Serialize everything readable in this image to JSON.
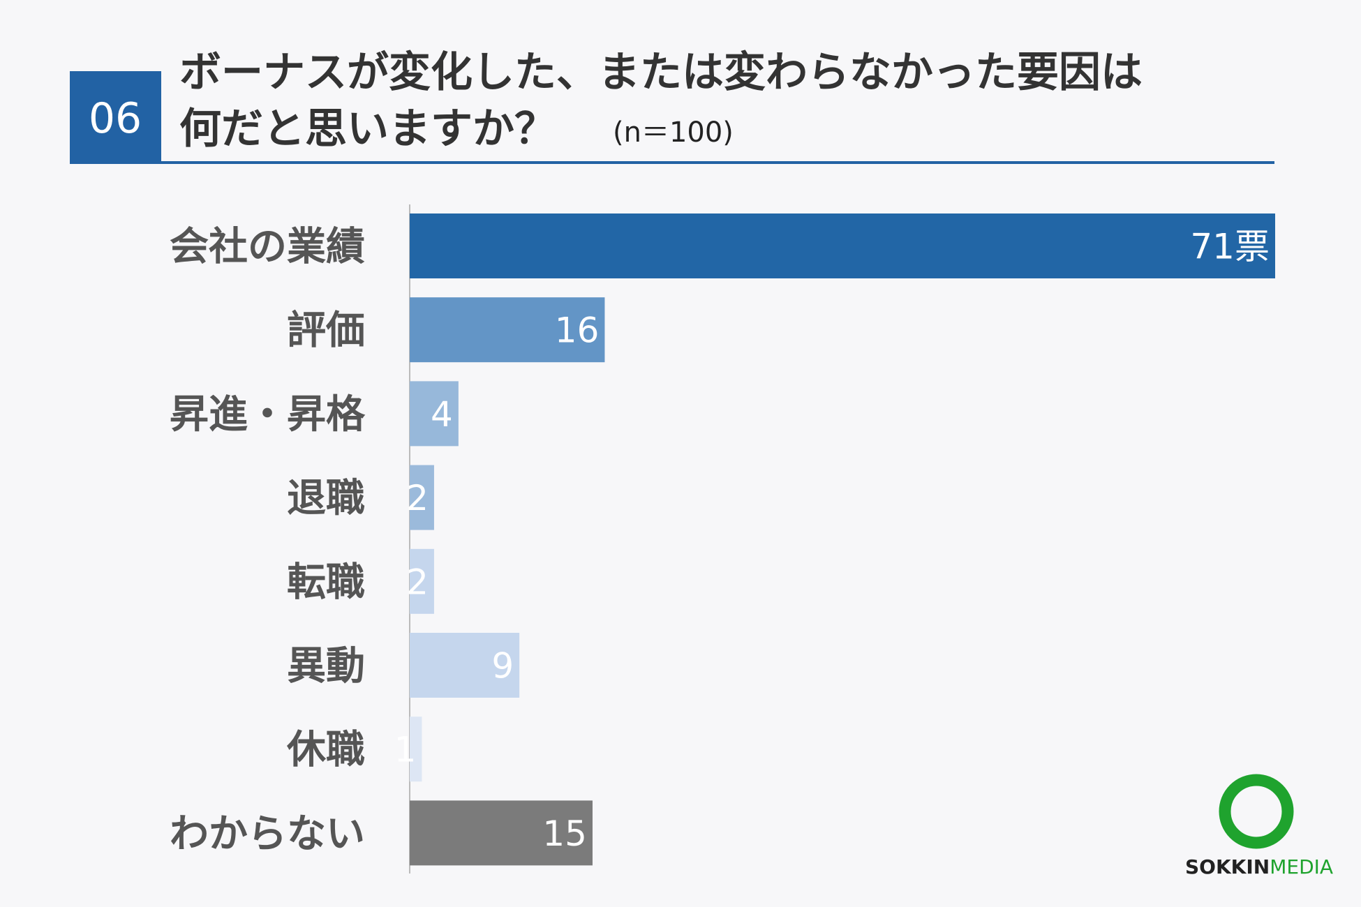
{
  "chart_data": {
    "type": "bar",
    "orientation": "horizontal",
    "badge": "06",
    "title": [
      "ボーナスが変化した、または変わらなかった要因は",
      "何だと思いますか？"
    ],
    "subtitle": "(n＝100)",
    "categories": [
      "会社の業績",
      "評価",
      "昇進・昇格",
      "退職",
      "転職",
      "異動",
      "休職",
      "わからない"
    ],
    "values": [
      71,
      16,
      4,
      2,
      2,
      9,
      1,
      15
    ],
    "value_labels": [
      "71票",
      "16",
      "4",
      "2",
      "2",
      "9",
      "1",
      "15"
    ],
    "colors": [
      "#2266a6",
      "#6395c6",
      "#97b8da",
      "#9bbadb",
      "#c5d6ed",
      "#c5d6ed",
      "#dde6f4",
      "#7b7b7b"
    ],
    "xlim": [
      0,
      71
    ],
    "logo": [
      "SOKKIN",
      "MEDIA"
    ]
  }
}
